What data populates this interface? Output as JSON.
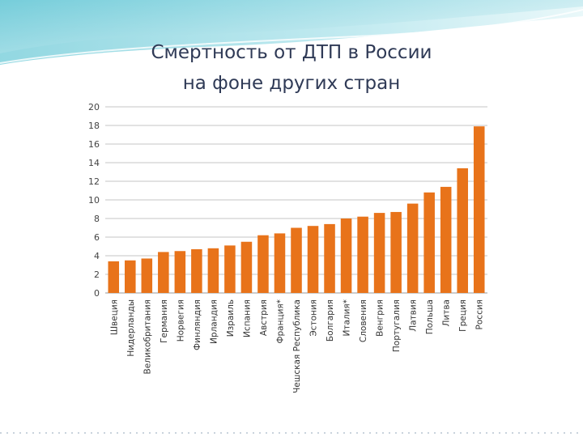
{
  "slide": {
    "title_line1": "Смертность от ДТП в России",
    "title_line2": "на фоне других стран",
    "accent_color": "#e8791f",
    "bar_color": "#e8731a",
    "title_color": "#2f3a56"
  },
  "chart_data": {
    "type": "bar",
    "title": "",
    "xlabel": "",
    "ylabel": "",
    "ylim": [
      0,
      20
    ],
    "yticks": [
      0,
      2,
      4,
      6,
      8,
      10,
      12,
      14,
      16,
      18,
      20
    ],
    "grid": true,
    "legend": "none",
    "categories": [
      "Швеция",
      "Нидерланды",
      "Великобритания",
      "Германия",
      "Норвегия",
      "Финляндия",
      "Ирландия",
      "Израиль",
      "Испания",
      "Австрия",
      "Франция*",
      "Чешская Республика",
      "Эстония",
      "Болгария",
      "Италия*",
      "Словения",
      "Венгрия",
      "Португалия",
      "Латвия",
      "Польша",
      "Литва",
      "Греция",
      "Россия"
    ],
    "values": [
      3.4,
      3.5,
      3.7,
      4.4,
      4.5,
      4.7,
      4.8,
      5.1,
      5.5,
      6.2,
      6.4,
      7.0,
      7.2,
      7.4,
      8.0,
      8.2,
      8.6,
      8.7,
      9.6,
      10.8,
      11.4,
      13.4,
      17.9
    ]
  }
}
